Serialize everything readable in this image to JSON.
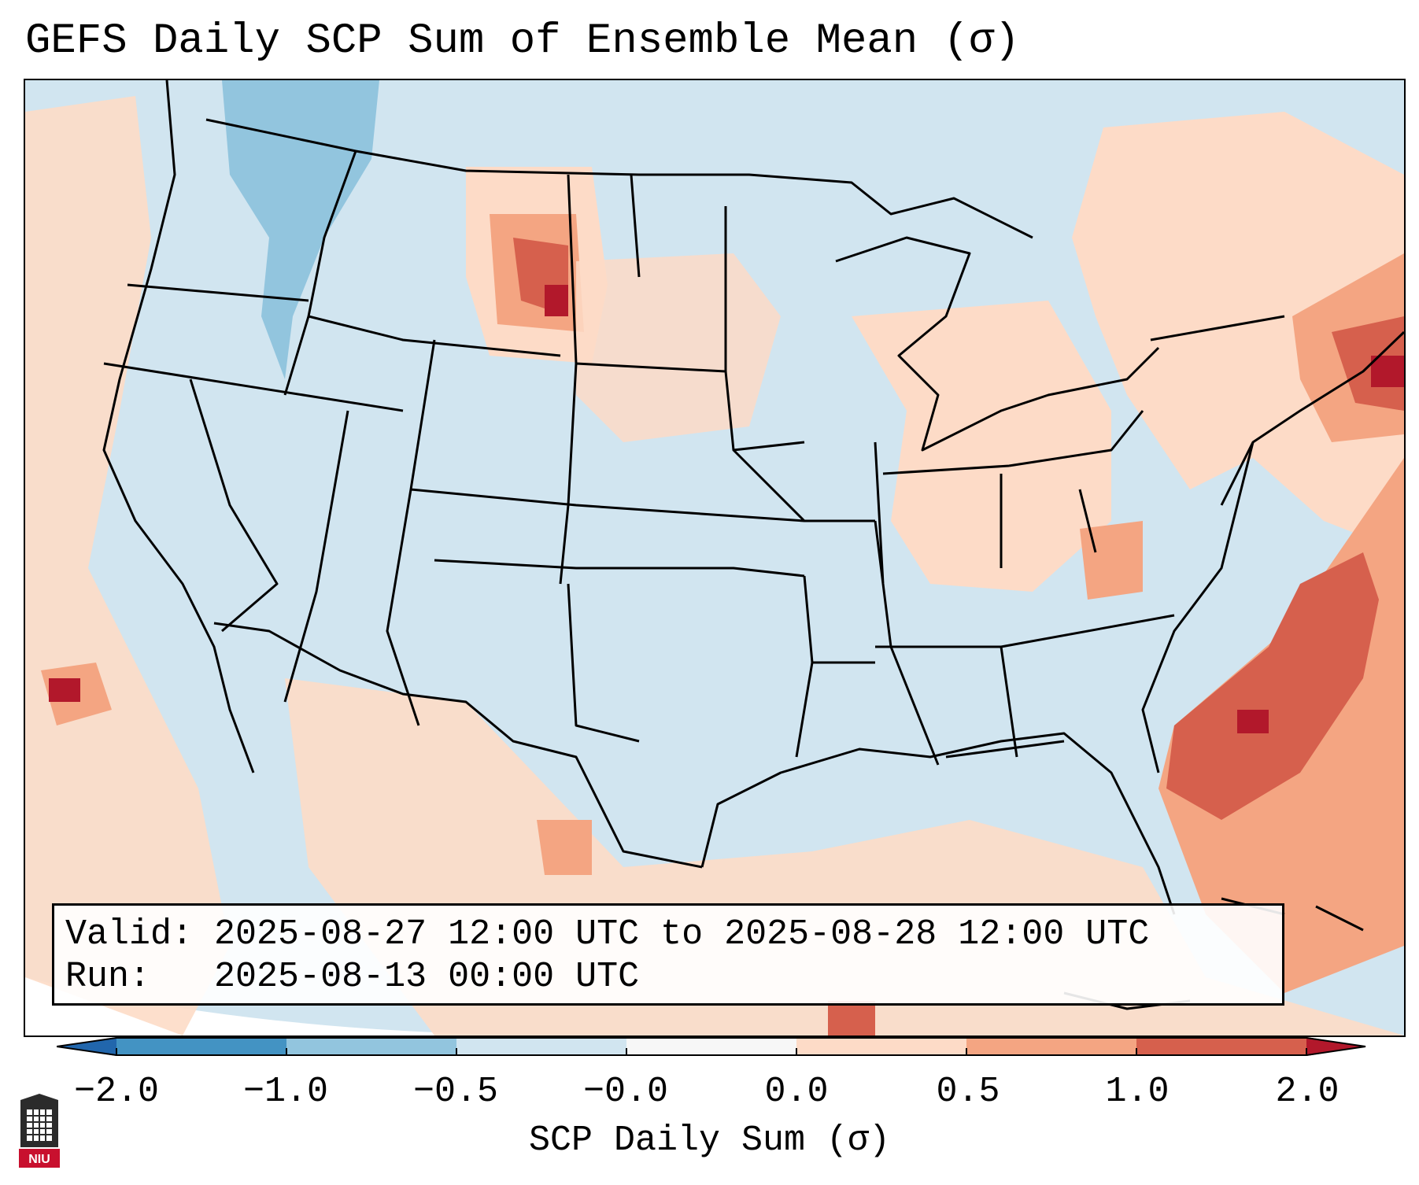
{
  "title": "GEFS Daily SCP Sum of Ensemble Mean (σ)",
  "info": {
    "valid_label": "Valid:",
    "valid_value": "2025-08-27 12:00 UTC to 2025-08-28 12:00 UTC",
    "run_label": "Run:",
    "run_value": "2025-08-13 00:00 UTC"
  },
  "colorbar": {
    "label": "SCP Daily Sum (σ)",
    "ticks": [
      "−2.0",
      "−1.0",
      "−0.5",
      "−0.0",
      "0.0",
      "0.5",
      "1.0",
      "2.0"
    ],
    "bins": [
      {
        "range": "< -2.0",
        "color": "#2166ac"
      },
      {
        "range": "-2.0 to -1.0",
        "color": "#4393c3"
      },
      {
        "range": "-1.0 to -0.5",
        "color": "#92c5de"
      },
      {
        "range": "-0.5 to -0.0",
        "color": "#d1e5f0"
      },
      {
        "range": "-0.0 to 0.0",
        "color": "#f7f7f7"
      },
      {
        "range": "0.0 to 0.5",
        "color": "#fddbc7"
      },
      {
        "range": "0.5 to 1.0",
        "color": "#f4a582"
      },
      {
        "range": "1.0 to 2.0",
        "color": "#d6604d"
      },
      {
        "range": "> 2.0",
        "color": "#b2182b"
      }
    ]
  },
  "map": {
    "projection": "Lambert conformal, CONUS",
    "background_value_color": "#d1e5f0",
    "anomaly_regions": [
      {
        "region": "Eastern Pacific offshore",
        "level": "0.0 to 0.5"
      },
      {
        "region": "Western Dakotas / Montana",
        "level": "1.0 to 2.0"
      },
      {
        "region": "Great Plains",
        "level": "0.0 to 0.5"
      },
      {
        "region": "Ohio Valley / Appalachians",
        "level": "0.5 to 1.0"
      },
      {
        "region": "Northeast / New England",
        "level": "1.0 to 2.0"
      },
      {
        "region": "Western Atlantic offshore",
        "level": "1.0 to 2.0"
      },
      {
        "region": "Gulf of Mexico",
        "level": "0.0 to 0.5"
      },
      {
        "region": "Northwest / Idaho",
        "level": "-1.0 to -0.5"
      }
    ]
  },
  "logo": {
    "text": "NIU",
    "color": "#c8102e"
  }
}
